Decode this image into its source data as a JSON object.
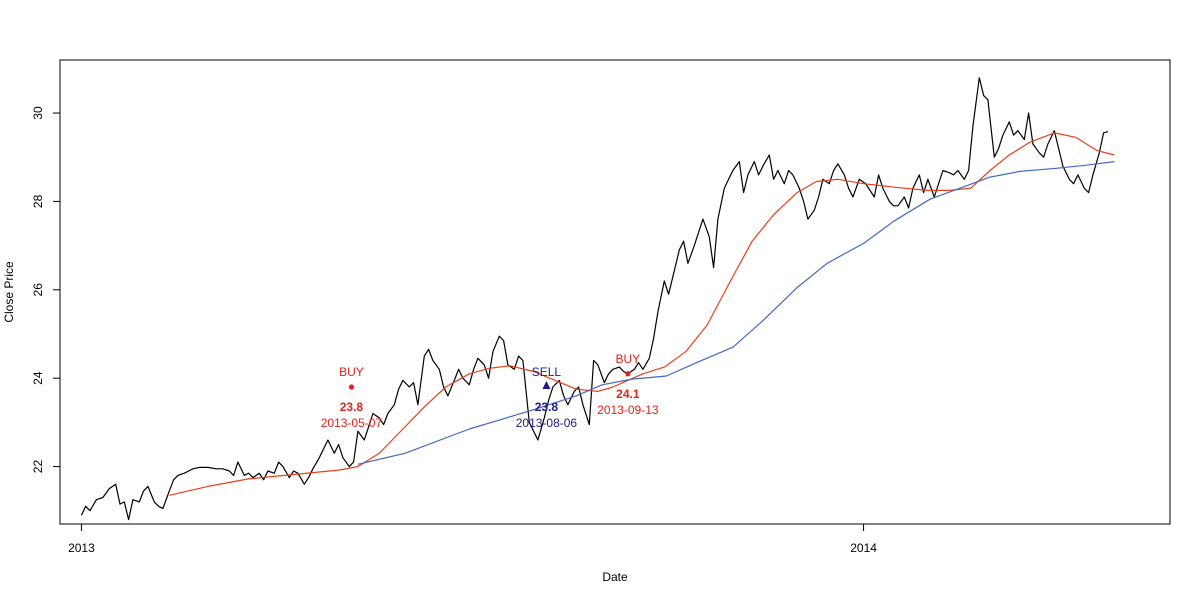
{
  "chart_data": {
    "type": "line",
    "xlabel": "Date",
    "ylabel": "Close Price",
    "xlim": [
      "2012-12-22",
      "2014-05-24"
    ],
    "ylim": [
      20.7,
      31.2
    ],
    "x_ticks": [
      {
        "date": "2013-01-01",
        "label": "2013"
      },
      {
        "date": "2014-01-01",
        "label": "2014"
      }
    ],
    "y_ticks": [
      22,
      24,
      26,
      28,
      30
    ],
    "grid": false,
    "series": [
      {
        "key": "close",
        "color": "#000000",
        "points": [
          [
            "2013-01-01",
            20.9
          ],
          [
            "2013-01-03",
            21.1
          ],
          [
            "2013-01-05",
            21.0
          ],
          [
            "2013-01-08",
            21.25
          ],
          [
            "2013-01-11",
            21.3
          ],
          [
            "2013-01-14",
            21.5
          ],
          [
            "2013-01-17",
            21.6
          ],
          [
            "2013-01-19",
            21.15
          ],
          [
            "2013-01-21",
            21.2
          ],
          [
            "2013-01-23",
            20.8
          ],
          [
            "2013-01-25",
            21.25
          ],
          [
            "2013-01-28",
            21.2
          ],
          [
            "2013-01-30",
            21.45
          ],
          [
            "2013-02-01",
            21.55
          ],
          [
            "2013-02-04",
            21.2
          ],
          [
            "2013-02-06",
            21.1
          ],
          [
            "2013-02-08",
            21.05
          ],
          [
            "2013-02-11",
            21.45
          ],
          [
            "2013-02-13",
            21.7
          ],
          [
            "2013-02-15",
            21.8
          ],
          [
            "2013-02-18",
            21.85
          ],
          [
            "2013-02-20",
            21.9
          ],
          [
            "2013-02-22",
            21.95
          ],
          [
            "2013-02-25",
            21.98
          ],
          [
            "2013-03-01",
            21.98
          ],
          [
            "2013-03-05",
            21.95
          ],
          [
            "2013-03-08",
            21.95
          ],
          [
            "2013-03-11",
            21.9
          ],
          [
            "2013-03-13",
            21.8
          ],
          [
            "2013-03-15",
            22.1
          ],
          [
            "2013-03-18",
            21.8
          ],
          [
            "2013-03-20",
            21.85
          ],
          [
            "2013-03-22",
            21.75
          ],
          [
            "2013-03-25",
            21.85
          ],
          [
            "2013-03-27",
            21.7
          ],
          [
            "2013-03-29",
            21.9
          ],
          [
            "2013-04-01",
            21.85
          ],
          [
            "2013-04-03",
            22.1
          ],
          [
            "2013-04-05",
            22.0
          ],
          [
            "2013-04-08",
            21.75
          ],
          [
            "2013-04-10",
            21.9
          ],
          [
            "2013-04-12",
            21.85
          ],
          [
            "2013-04-15",
            21.6
          ],
          [
            "2013-04-17",
            21.75
          ],
          [
            "2013-04-19",
            21.95
          ],
          [
            "2013-04-22",
            22.2
          ],
          [
            "2013-04-24",
            22.4
          ],
          [
            "2013-04-26",
            22.6
          ],
          [
            "2013-04-29",
            22.3
          ],
          [
            "2013-05-01",
            22.5
          ],
          [
            "2013-05-03",
            22.2
          ],
          [
            "2013-05-06",
            22.0
          ],
          [
            "2013-05-08",
            22.1
          ],
          [
            "2013-05-10",
            22.8
          ],
          [
            "2013-05-13",
            22.6
          ],
          [
            "2013-05-15",
            22.9
          ],
          [
            "2013-05-17",
            23.2
          ],
          [
            "2013-05-20",
            23.1
          ],
          [
            "2013-05-22",
            22.95
          ],
          [
            "2013-05-24",
            23.2
          ],
          [
            "2013-05-27",
            23.4
          ],
          [
            "2013-05-29",
            23.75
          ],
          [
            "2013-05-31",
            23.95
          ],
          [
            "2013-06-03",
            23.8
          ],
          [
            "2013-06-05",
            23.9
          ],
          [
            "2013-06-07",
            23.4
          ],
          [
            "2013-06-10",
            24.5
          ],
          [
            "2013-06-12",
            24.65
          ],
          [
            "2013-06-14",
            24.4
          ],
          [
            "2013-06-17",
            24.2
          ],
          [
            "2013-06-19",
            23.8
          ],
          [
            "2013-06-21",
            23.6
          ],
          [
            "2013-06-24",
            23.95
          ],
          [
            "2013-06-26",
            24.2
          ],
          [
            "2013-06-28",
            24.0
          ],
          [
            "2013-07-01",
            23.85
          ],
          [
            "2013-07-03",
            24.2
          ],
          [
            "2013-07-05",
            24.45
          ],
          [
            "2013-07-08",
            24.3
          ],
          [
            "2013-07-10",
            24.0
          ],
          [
            "2013-07-12",
            24.6
          ],
          [
            "2013-07-15",
            24.95
          ],
          [
            "2013-07-17",
            24.85
          ],
          [
            "2013-07-19",
            24.3
          ],
          [
            "2013-07-22",
            24.2
          ],
          [
            "2013-07-24",
            24.5
          ],
          [
            "2013-07-26",
            24.4
          ],
          [
            "2013-07-29",
            23.0
          ],
          [
            "2013-07-31",
            22.8
          ],
          [
            "2013-08-02",
            22.6
          ],
          [
            "2013-08-05",
            23.1
          ],
          [
            "2013-08-07",
            23.5
          ],
          [
            "2013-08-09",
            23.8
          ],
          [
            "2013-08-12",
            23.95
          ],
          [
            "2013-08-14",
            23.6
          ],
          [
            "2013-08-16",
            23.4
          ],
          [
            "2013-08-19",
            23.7
          ],
          [
            "2013-08-21",
            23.8
          ],
          [
            "2013-08-23",
            23.4
          ],
          [
            "2013-08-26",
            22.95
          ],
          [
            "2013-08-28",
            24.4
          ],
          [
            "2013-08-30",
            24.3
          ],
          [
            "2013-09-02",
            23.9
          ],
          [
            "2013-09-04",
            24.1
          ],
          [
            "2013-09-06",
            24.2
          ],
          [
            "2013-09-09",
            24.25
          ],
          [
            "2013-09-11",
            24.15
          ],
          [
            "2013-09-13",
            24.1
          ],
          [
            "2013-09-16",
            24.2
          ],
          [
            "2013-09-18",
            24.35
          ],
          [
            "2013-09-20",
            24.2
          ],
          [
            "2013-09-23",
            24.45
          ],
          [
            "2013-09-25",
            24.9
          ],
          [
            "2013-09-27",
            25.5
          ],
          [
            "2013-09-30",
            26.2
          ],
          [
            "2013-10-02",
            25.9
          ],
          [
            "2013-10-04",
            26.3
          ],
          [
            "2013-10-07",
            26.9
          ],
          [
            "2013-10-09",
            27.1
          ],
          [
            "2013-10-11",
            26.6
          ],
          [
            "2013-10-14",
            27.0
          ],
          [
            "2013-10-16",
            27.3
          ],
          [
            "2013-10-18",
            27.6
          ],
          [
            "2013-10-21",
            27.2
          ],
          [
            "2013-10-23",
            26.5
          ],
          [
            "2013-10-25",
            27.6
          ],
          [
            "2013-10-28",
            28.3
          ],
          [
            "2013-10-30",
            28.5
          ],
          [
            "2013-11-01",
            28.7
          ],
          [
            "2013-11-04",
            28.9
          ],
          [
            "2013-11-06",
            28.2
          ],
          [
            "2013-11-08",
            28.6
          ],
          [
            "2013-11-11",
            28.9
          ],
          [
            "2013-11-13",
            28.6
          ],
          [
            "2013-11-15",
            28.8
          ],
          [
            "2013-11-18",
            29.05
          ],
          [
            "2013-11-20",
            28.5
          ],
          [
            "2013-11-22",
            28.7
          ],
          [
            "2013-11-25",
            28.4
          ],
          [
            "2013-11-27",
            28.7
          ],
          [
            "2013-11-29",
            28.6
          ],
          [
            "2013-12-02",
            28.3
          ],
          [
            "2013-12-04",
            28.0
          ],
          [
            "2013-12-06",
            27.6
          ],
          [
            "2013-12-09",
            27.8
          ],
          [
            "2013-12-11",
            28.1
          ],
          [
            "2013-12-13",
            28.5
          ],
          [
            "2013-12-16",
            28.4
          ],
          [
            "2013-12-18",
            28.7
          ],
          [
            "2013-12-20",
            28.85
          ],
          [
            "2013-12-23",
            28.6
          ],
          [
            "2013-12-25",
            28.3
          ],
          [
            "2013-12-27",
            28.1
          ],
          [
            "2013-12-30",
            28.5
          ],
          [
            "2014-01-02",
            28.4
          ],
          [
            "2014-01-06",
            28.1
          ],
          [
            "2014-01-08",
            28.6
          ],
          [
            "2014-01-10",
            28.3
          ],
          [
            "2014-01-13",
            28.0
          ],
          [
            "2014-01-15",
            27.9
          ],
          [
            "2014-01-17",
            27.9
          ],
          [
            "2014-01-20",
            28.1
          ],
          [
            "2014-01-22",
            27.85
          ],
          [
            "2014-01-24",
            28.3
          ],
          [
            "2014-01-27",
            28.6
          ],
          [
            "2014-01-29",
            28.2
          ],
          [
            "2014-01-31",
            28.5
          ],
          [
            "2014-02-03",
            28.1
          ],
          [
            "2014-02-05",
            28.4
          ],
          [
            "2014-02-07",
            28.7
          ],
          [
            "2014-02-10",
            28.65
          ],
          [
            "2014-02-12",
            28.6
          ],
          [
            "2014-02-14",
            28.7
          ],
          [
            "2014-02-17",
            28.5
          ],
          [
            "2014-02-19",
            28.7
          ],
          [
            "2014-02-21",
            29.7
          ],
          [
            "2014-02-24",
            30.8
          ],
          [
            "2014-02-26",
            30.4
          ],
          [
            "2014-02-28",
            30.3
          ],
          [
            "2014-03-03",
            29.0
          ],
          [
            "2014-03-05",
            29.2
          ],
          [
            "2014-03-07",
            29.5
          ],
          [
            "2014-03-10",
            29.8
          ],
          [
            "2014-03-12",
            29.5
          ],
          [
            "2014-03-14",
            29.6
          ],
          [
            "2014-03-17",
            29.4
          ],
          [
            "2014-03-19",
            30.0
          ],
          [
            "2014-03-21",
            29.3
          ],
          [
            "2014-03-24",
            29.1
          ],
          [
            "2014-03-26",
            29.0
          ],
          [
            "2014-03-28",
            29.3
          ],
          [
            "2014-03-31",
            29.6
          ],
          [
            "2014-04-02",
            29.2
          ],
          [
            "2014-04-04",
            28.8
          ],
          [
            "2014-04-07",
            28.5
          ],
          [
            "2014-04-09",
            28.4
          ],
          [
            "2014-04-11",
            28.6
          ],
          [
            "2014-04-14",
            28.3
          ],
          [
            "2014-04-16",
            28.2
          ],
          [
            "2014-04-18",
            28.6
          ],
          [
            "2014-04-21",
            29.1
          ],
          [
            "2014-04-23",
            29.55
          ],
          [
            "2014-04-25",
            29.58
          ]
        ]
      },
      {
        "key": "ma_short",
        "color": "#e8401c",
        "points": [
          [
            "2013-02-11",
            21.35
          ],
          [
            "2013-03-01",
            21.55
          ],
          [
            "2013-03-20",
            21.72
          ],
          [
            "2013-04-10",
            21.82
          ],
          [
            "2013-05-01",
            21.92
          ],
          [
            "2013-05-10",
            22.0
          ],
          [
            "2013-05-20",
            22.3
          ],
          [
            "2013-05-31",
            22.85
          ],
          [
            "2013-06-10",
            23.35
          ],
          [
            "2013-06-20",
            23.8
          ],
          [
            "2013-07-01",
            24.1
          ],
          [
            "2013-07-10",
            24.22
          ],
          [
            "2013-07-20",
            24.28
          ],
          [
            "2013-07-31",
            24.15
          ],
          [
            "2013-08-10",
            23.95
          ],
          [
            "2013-08-20",
            23.75
          ],
          [
            "2013-08-30",
            23.7
          ],
          [
            "2013-09-06",
            23.8
          ],
          [
            "2013-09-13",
            23.95
          ],
          [
            "2013-09-20",
            24.1
          ],
          [
            "2013-09-30",
            24.25
          ],
          [
            "2013-10-10",
            24.6
          ],
          [
            "2013-10-20",
            25.2
          ],
          [
            "2013-11-01",
            26.3
          ],
          [
            "2013-11-10",
            27.1
          ],
          [
            "2013-11-20",
            27.7
          ],
          [
            "2013-12-01",
            28.2
          ],
          [
            "2013-12-10",
            28.45
          ],
          [
            "2013-12-20",
            28.5
          ],
          [
            "2014-01-01",
            28.4
          ],
          [
            "2014-01-10",
            28.35
          ],
          [
            "2014-01-20",
            28.3
          ],
          [
            "2014-01-31",
            28.25
          ],
          [
            "2014-02-10",
            28.25
          ],
          [
            "2014-02-20",
            28.3
          ],
          [
            "2014-03-01",
            28.7
          ],
          [
            "2014-03-10",
            29.05
          ],
          [
            "2014-03-20",
            29.35
          ],
          [
            "2014-03-31",
            29.55
          ],
          [
            "2014-04-10",
            29.45
          ],
          [
            "2014-04-20",
            29.15
          ],
          [
            "2014-04-28",
            29.05
          ]
        ]
      },
      {
        "key": "ma_long",
        "color": "#4169c8",
        "points": [
          [
            "2013-05-10",
            22.05
          ],
          [
            "2013-06-01",
            22.3
          ],
          [
            "2013-07-01",
            22.85
          ],
          [
            "2013-08-01",
            23.3
          ],
          [
            "2013-08-20",
            23.6
          ],
          [
            "2013-09-01",
            23.85
          ],
          [
            "2013-09-15",
            23.98
          ],
          [
            "2013-10-01",
            24.05
          ],
          [
            "2013-10-15",
            24.35
          ],
          [
            "2013-11-01",
            24.7
          ],
          [
            "2013-11-15",
            25.3
          ],
          [
            "2013-12-01",
            26.05
          ],
          [
            "2013-12-15",
            26.6
          ],
          [
            "2014-01-01",
            27.05
          ],
          [
            "2014-01-15",
            27.55
          ],
          [
            "2014-02-01",
            28.05
          ],
          [
            "2014-02-15",
            28.3
          ],
          [
            "2014-03-01",
            28.55
          ],
          [
            "2014-03-15",
            28.68
          ],
          [
            "2014-04-01",
            28.75
          ],
          [
            "2014-04-15",
            28.82
          ],
          [
            "2014-04-28",
            28.9
          ]
        ]
      }
    ],
    "annotations": [
      {
        "signal": "BUY",
        "price": "23.8",
        "date": "2013-05-07",
        "x": "2013-05-07",
        "y": 23.8,
        "color": "#e8211c",
        "marker": "circle"
      },
      {
        "signal": "SELL",
        "price": "23.8",
        "date": "2013-08-06",
        "x": "2013-08-06",
        "y": 23.8,
        "color": "#1c1c8c",
        "marker": "triangle"
      },
      {
        "signal": "BUY",
        "price": "24.1",
        "date": "2013-09-13",
        "x": "2013-09-13",
        "y": 24.1,
        "color": "#e8211c",
        "marker": "circle"
      }
    ]
  }
}
